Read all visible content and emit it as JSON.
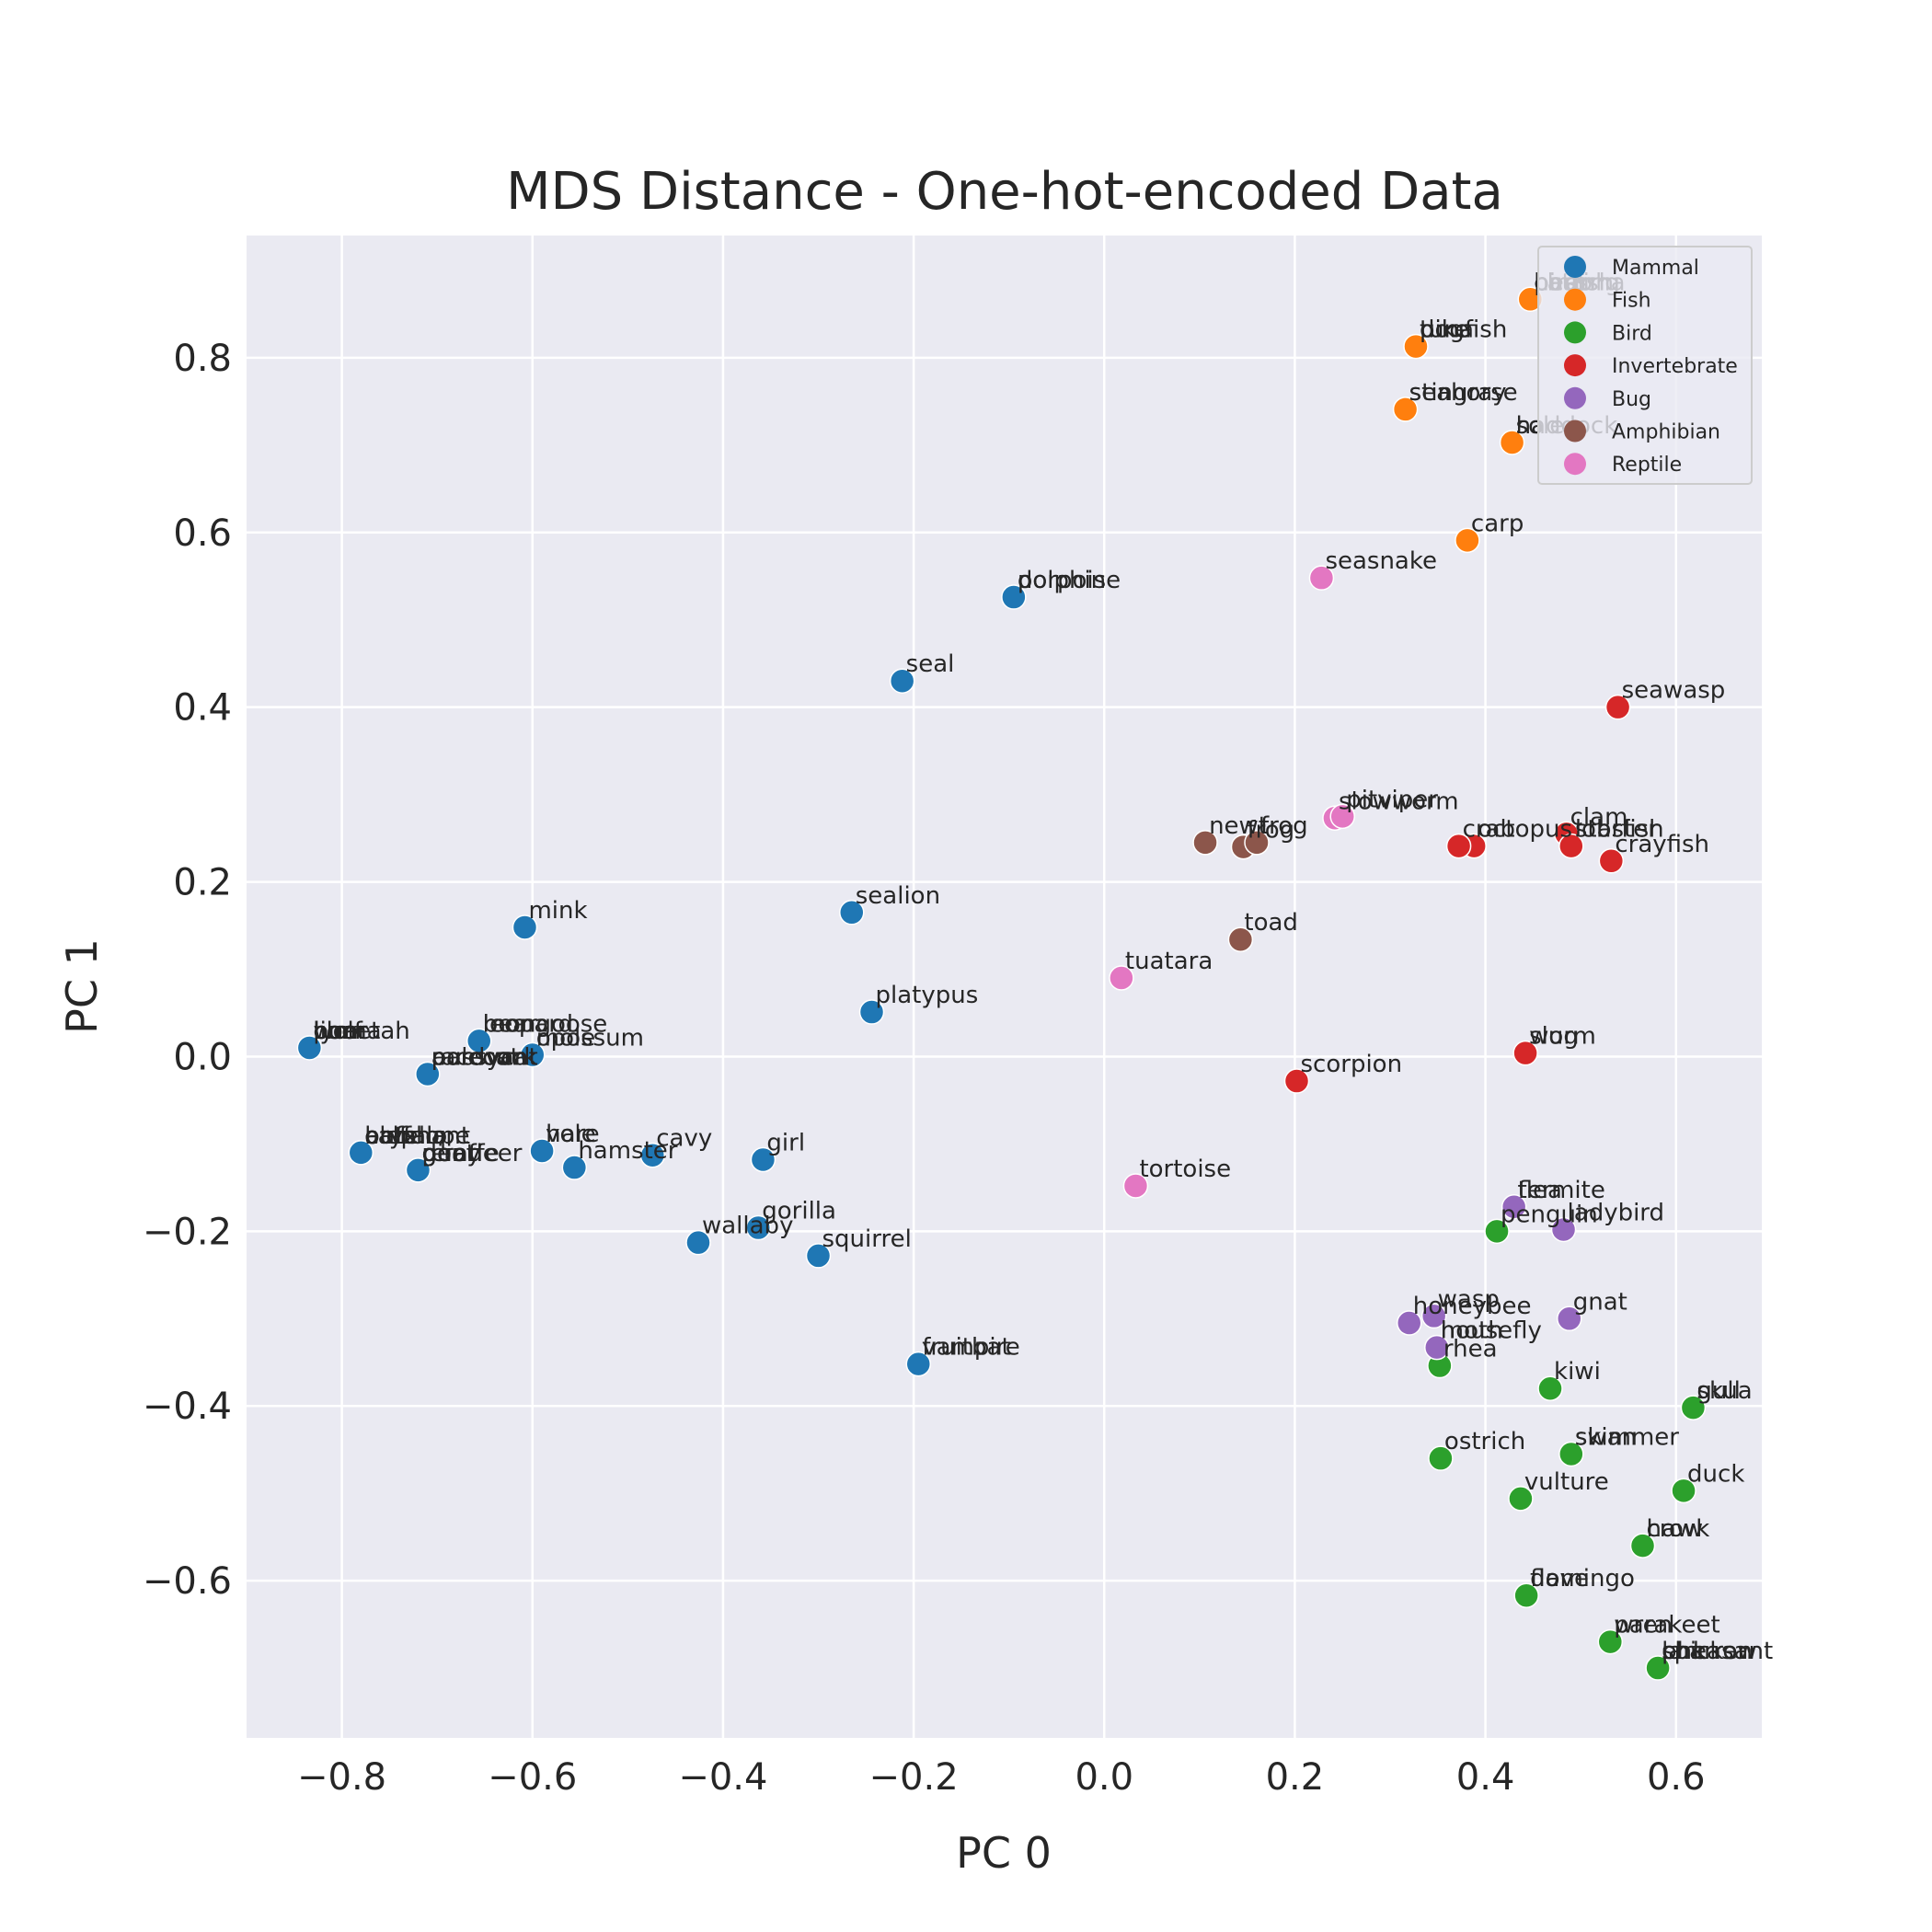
{
  "chart_data": {
    "type": "scatter",
    "title": "MDS Distance - One-hot-encoded Data",
    "xlabel": "PC 0",
    "ylabel": "PC 1",
    "xlim": [
      -0.9,
      0.69
    ],
    "ylim": [
      -0.78,
      0.94
    ],
    "xticks": [
      -0.8,
      -0.6,
      -0.4,
      -0.2,
      0.0,
      0.2,
      0.4,
      0.6
    ],
    "yticks": [
      -0.6,
      -0.4,
      -0.2,
      0.0,
      0.2,
      0.4,
      0.6,
      0.8
    ],
    "xtick_labels": [
      "−0.8",
      "−0.6",
      "−0.4",
      "−0.2",
      "0.0",
      "0.2",
      "0.4",
      "0.6"
    ],
    "ytick_labels": [
      "−0.6",
      "−0.4",
      "−0.2",
      "0.0",
      "0.2",
      "0.4",
      "0.6",
      "0.8"
    ],
    "grid": true,
    "legend_position": "top-right",
    "series": [
      {
        "name": "Mammal",
        "color": "#1f77b4",
        "points": [
          {
            "x": -0.834,
            "y": 0.01,
            "label": "boar"
          },
          {
            "x": -0.834,
            "y": 0.01,
            "label": "puma"
          },
          {
            "x": -0.834,
            "y": 0.01,
            "label": "lion"
          },
          {
            "x": -0.834,
            "y": 0.01,
            "label": "lynx"
          },
          {
            "x": -0.834,
            "y": 0.01,
            "label": "wolf"
          },
          {
            "x": -0.834,
            "y": 0.01,
            "label": "cheetah"
          },
          {
            "x": -0.656,
            "y": 0.018,
            "label": "mongoose"
          },
          {
            "x": -0.656,
            "y": 0.018,
            "label": "leopard"
          },
          {
            "x": -0.656,
            "y": 0.018,
            "label": "bear"
          },
          {
            "x": -0.71,
            "y": -0.02,
            "label": "aardvark"
          },
          {
            "x": -0.71,
            "y": -0.02,
            "label": "polecat"
          },
          {
            "x": -0.71,
            "y": -0.02,
            "label": "pussycat"
          },
          {
            "x": -0.71,
            "y": -0.02,
            "label": "raccoon"
          },
          {
            "x": -0.6,
            "y": 0.002,
            "label": "mole"
          },
          {
            "x": -0.6,
            "y": 0.002,
            "label": "opossum"
          },
          {
            "x": -0.78,
            "y": -0.11,
            "label": "oryx"
          },
          {
            "x": -0.78,
            "y": -0.11,
            "label": "antelope"
          },
          {
            "x": -0.78,
            "y": -0.11,
            "label": "elephant"
          },
          {
            "x": -0.78,
            "y": -0.11,
            "label": "calf"
          },
          {
            "x": -0.78,
            "y": -0.11,
            "label": "buffalo"
          },
          {
            "x": -0.72,
            "y": -0.13,
            "label": "goat"
          },
          {
            "x": -0.72,
            "y": -0.13,
            "label": "deer"
          },
          {
            "x": -0.72,
            "y": -0.13,
            "label": "pony"
          },
          {
            "x": -0.72,
            "y": -0.13,
            "label": "giraffe"
          },
          {
            "x": -0.72,
            "y": -0.13,
            "label": "reindeer"
          },
          {
            "x": -0.59,
            "y": -0.108,
            "label": "hare"
          },
          {
            "x": -0.59,
            "y": -0.108,
            "label": "vole"
          },
          {
            "x": -0.556,
            "y": -0.127,
            "label": "hamster"
          },
          {
            "x": -0.474,
            "y": -0.113,
            "label": "cavy"
          },
          {
            "x": -0.358,
            "y": -0.118,
            "label": "girl"
          },
          {
            "x": -0.426,
            "y": -0.213,
            "label": "wallaby"
          },
          {
            "x": -0.363,
            "y": -0.196,
            "label": "gorilla"
          },
          {
            "x": -0.3,
            "y": -0.228,
            "label": "squirrel"
          },
          {
            "x": -0.195,
            "y": -0.352,
            "label": "vampire"
          },
          {
            "x": -0.195,
            "y": -0.352,
            "label": "fruitbat"
          },
          {
            "x": -0.608,
            "y": 0.148,
            "label": "mink"
          },
          {
            "x": -0.265,
            "y": 0.165,
            "label": "sealion"
          },
          {
            "x": -0.244,
            "y": 0.051,
            "label": "platypus"
          },
          {
            "x": -0.212,
            "y": 0.43,
            "label": "seal"
          },
          {
            "x": -0.095,
            "y": 0.526,
            "label": "dolphin"
          },
          {
            "x": -0.095,
            "y": 0.526,
            "label": "porpoise"
          }
        ]
      },
      {
        "name": "Fish",
        "color": "#ff7f0e",
        "points": [
          {
            "x": 0.447,
            "y": 0.867,
            "label": "piranha"
          },
          {
            "x": 0.447,
            "y": 0.867,
            "label": "catfish"
          },
          {
            "x": 0.447,
            "y": 0.867,
            "label": "herring"
          },
          {
            "x": 0.447,
            "y": 0.867,
            "label": "bass"
          },
          {
            "x": 0.447,
            "y": 0.867,
            "label": "chub"
          },
          {
            "x": 0.327,
            "y": 0.813,
            "label": "tuna"
          },
          {
            "x": 0.327,
            "y": 0.813,
            "label": "pike"
          },
          {
            "x": 0.327,
            "y": 0.813,
            "label": "dogfish"
          },
          {
            "x": 0.316,
            "y": 0.741,
            "label": "stingray"
          },
          {
            "x": 0.316,
            "y": 0.741,
            "label": "seahorse"
          },
          {
            "x": 0.428,
            "y": 0.703,
            "label": "haddock"
          },
          {
            "x": 0.428,
            "y": 0.703,
            "label": "sole"
          },
          {
            "x": 0.381,
            "y": 0.591,
            "label": "carp"
          }
        ]
      },
      {
        "name": "Bird",
        "color": "#2ca02c",
        "points": [
          {
            "x": 0.412,
            "y": -0.2,
            "label": "penguin"
          },
          {
            "x": 0.352,
            "y": -0.354,
            "label": "rhea"
          },
          {
            "x": 0.468,
            "y": -0.38,
            "label": "kiwi"
          },
          {
            "x": 0.618,
            "y": -0.402,
            "label": "skua"
          },
          {
            "x": 0.618,
            "y": -0.402,
            "label": "gull"
          },
          {
            "x": 0.49,
            "y": -0.455,
            "label": "skimmer"
          },
          {
            "x": 0.49,
            "y": -0.455,
            "label": "swan"
          },
          {
            "x": 0.353,
            "y": -0.46,
            "label": "ostrich"
          },
          {
            "x": 0.608,
            "y": -0.497,
            "label": "duck"
          },
          {
            "x": 0.437,
            "y": -0.506,
            "label": "vulture"
          },
          {
            "x": 0.565,
            "y": -0.56,
            "label": "hawk"
          },
          {
            "x": 0.565,
            "y": -0.56,
            "label": "crow"
          },
          {
            "x": 0.443,
            "y": -0.617,
            "label": "flamingo"
          },
          {
            "x": 0.443,
            "y": -0.617,
            "label": "dove"
          },
          {
            "x": 0.531,
            "y": -0.67,
            "label": "wren"
          },
          {
            "x": 0.531,
            "y": -0.67,
            "label": "parakeet"
          },
          {
            "x": 0.581,
            "y": -0.7,
            "label": "sparrow"
          },
          {
            "x": 0.581,
            "y": -0.7,
            "label": "lark"
          },
          {
            "x": 0.581,
            "y": -0.7,
            "label": "pheasant"
          },
          {
            "x": 0.581,
            "y": -0.7,
            "label": "chicken"
          }
        ]
      },
      {
        "name": "Invertebrate",
        "color": "#d62728",
        "points": [
          {
            "x": 0.539,
            "y": 0.4,
            "label": "seawasp"
          },
          {
            "x": 0.485,
            "y": 0.255,
            "label": "clam"
          },
          {
            "x": 0.49,
            "y": 0.241,
            "label": "starfish"
          },
          {
            "x": 0.49,
            "y": 0.241,
            "label": "lobster"
          },
          {
            "x": 0.532,
            "y": 0.224,
            "label": "crayfish"
          },
          {
            "x": 0.388,
            "y": 0.241,
            "label": "octopus"
          },
          {
            "x": 0.372,
            "y": 0.241,
            "label": "crab"
          },
          {
            "x": 0.442,
            "y": 0.004,
            "label": "worm"
          },
          {
            "x": 0.442,
            "y": 0.004,
            "label": "slug"
          },
          {
            "x": 0.202,
            "y": -0.028,
            "label": "scorpion"
          }
        ]
      },
      {
        "name": "Bug",
        "color": "#9467bd",
        "points": [
          {
            "x": 0.43,
            "y": -0.172,
            "label": "flea"
          },
          {
            "x": 0.43,
            "y": -0.172,
            "label": "termite"
          },
          {
            "x": 0.482,
            "y": -0.198,
            "label": "ladybird"
          },
          {
            "x": 0.488,
            "y": -0.3,
            "label": "gnat"
          },
          {
            "x": 0.346,
            "y": -0.297,
            "label": "wasp"
          },
          {
            "x": 0.32,
            "y": -0.305,
            "label": "honeybee"
          },
          {
            "x": 0.349,
            "y": -0.333,
            "label": "moth"
          },
          {
            "x": 0.349,
            "y": -0.333,
            "label": "housefly"
          }
        ]
      },
      {
        "name": "Amphibian",
        "color": "#8c564b",
        "points": [
          {
            "x": 0.106,
            "y": 0.245,
            "label": "newt"
          },
          {
            "x": 0.146,
            "y": 0.24,
            "label": "frog"
          },
          {
            "x": 0.16,
            "y": 0.245,
            "label": "frog"
          },
          {
            "x": 0.143,
            "y": 0.134,
            "label": "toad"
          }
        ]
      },
      {
        "name": "Reptile",
        "color": "#e377c2",
        "points": [
          {
            "x": 0.242,
            "y": 0.273,
            "label": "slowworm"
          },
          {
            "x": 0.25,
            "y": 0.275,
            "label": "pitviper"
          },
          {
            "x": 0.228,
            "y": 0.548,
            "label": "seasnake"
          },
          {
            "x": 0.018,
            "y": 0.09,
            "label": "tuatara"
          },
          {
            "x": 0.033,
            "y": -0.148,
            "label": "tortoise"
          }
        ]
      }
    ]
  }
}
